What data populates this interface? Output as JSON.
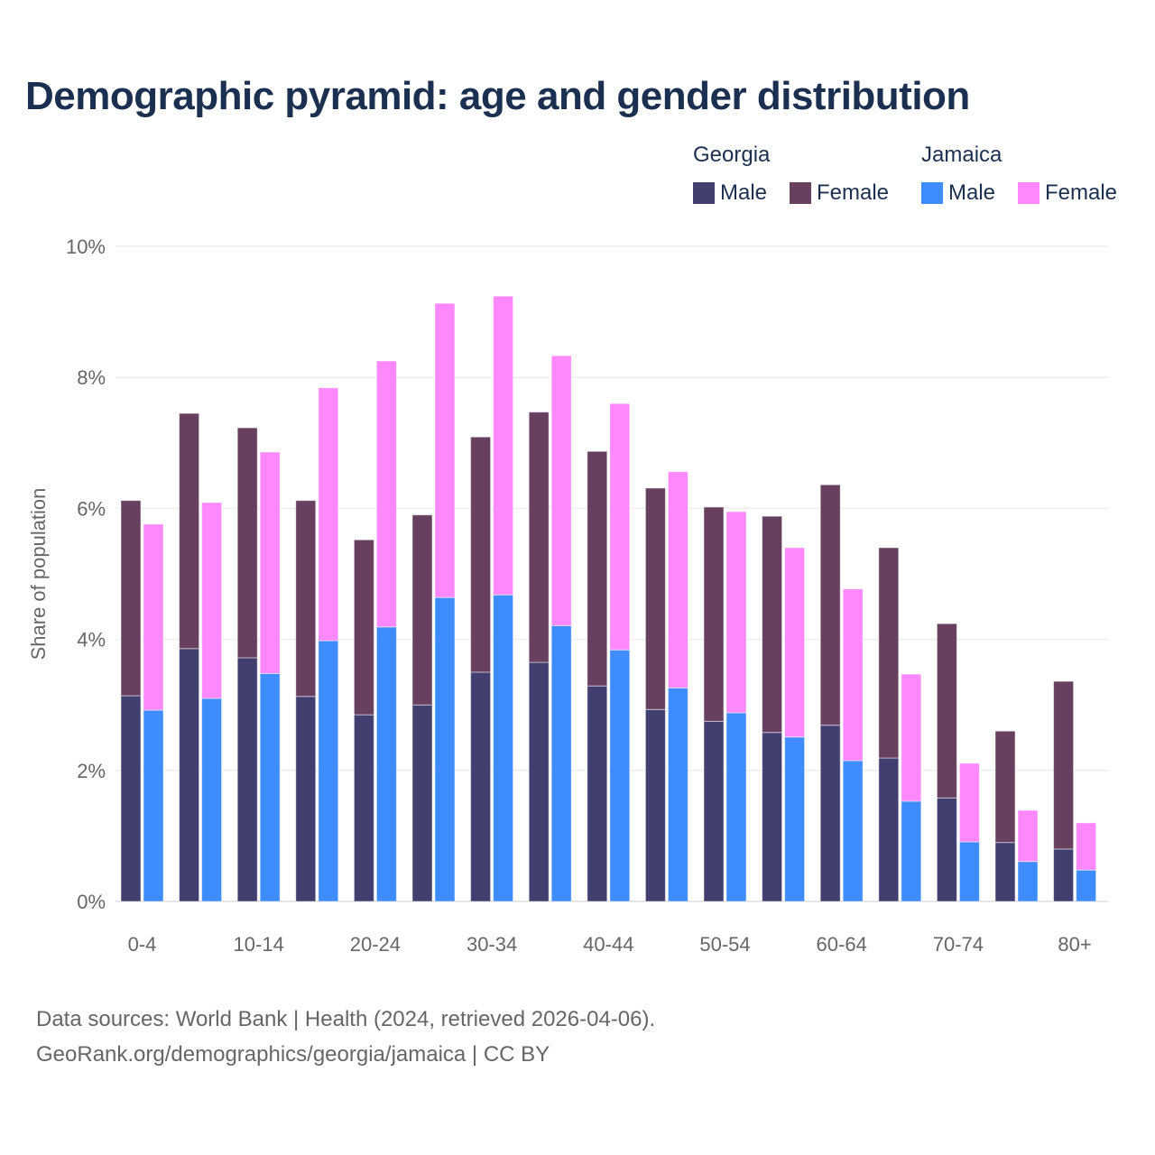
{
  "chart_data": {
    "type": "bar",
    "stacked": true,
    "title": "Demographic pyramid: age and gender distribution",
    "ylabel": "Share of population",
    "xlabel": "",
    "ylim": [
      0,
      10
    ],
    "yticks": [
      "0%",
      "2%",
      "4%",
      "6%",
      "8%",
      "10%"
    ],
    "ytick_values": [
      0,
      2,
      4,
      6,
      8,
      10
    ],
    "categories": [
      "0-4",
      "5-9",
      "10-14",
      "15-19",
      "20-24",
      "25-29",
      "30-34",
      "35-39",
      "40-44",
      "45-49",
      "50-54",
      "55-59",
      "60-64",
      "65-69",
      "70-74",
      "75-79",
      "80+"
    ],
    "xtick_labels": [
      "0-4",
      "10-14",
      "20-24",
      "30-34",
      "40-44",
      "50-54",
      "60-64",
      "70-74",
      "80+"
    ],
    "legend_placement": "top-right",
    "groups": [
      {
        "name": "Georgia",
        "series": [
          {
            "name": "Male",
            "color": "#413f6f",
            "values": [
              3.14,
              3.86,
              3.72,
              3.13,
              2.85,
              3.0,
              3.5,
              3.65,
              3.29,
              2.93,
              2.75,
              2.58,
              2.69,
              2.19,
              1.58,
              0.9,
              0.8
            ]
          },
          {
            "name": "Female",
            "color": "#673f5f",
            "values": [
              2.98,
              3.59,
              3.51,
              2.99,
              2.67,
              2.9,
              3.59,
              3.82,
              3.58,
              3.38,
              3.27,
              3.3,
              3.67,
              3.21,
              2.66,
              1.7,
              2.56
            ]
          }
        ]
      },
      {
        "name": "Jamaica",
        "series": [
          {
            "name": "Male",
            "color": "#3f8cff",
            "values": [
              2.92,
              3.1,
              3.48,
              3.98,
              4.19,
              4.64,
              4.68,
              4.21,
              3.84,
              3.26,
              2.88,
              2.51,
              2.15,
              1.53,
              0.91,
              0.61,
              0.48
            ]
          },
          {
            "name": "Female",
            "color": "#ff88ff",
            "values": [
              2.84,
              2.99,
              3.38,
              3.86,
              4.06,
              4.49,
              4.56,
              4.12,
              3.76,
              3.3,
              3.07,
              2.89,
              2.62,
              1.94,
              1.2,
              0.78,
              0.72
            ]
          }
        ]
      }
    ]
  },
  "footer": {
    "source": "Data sources: World Bank | Health (2024, retrieved 2026-04-06).",
    "credit": "GeoRank.org/demographics/georgia/jamaica | CC BY"
  }
}
